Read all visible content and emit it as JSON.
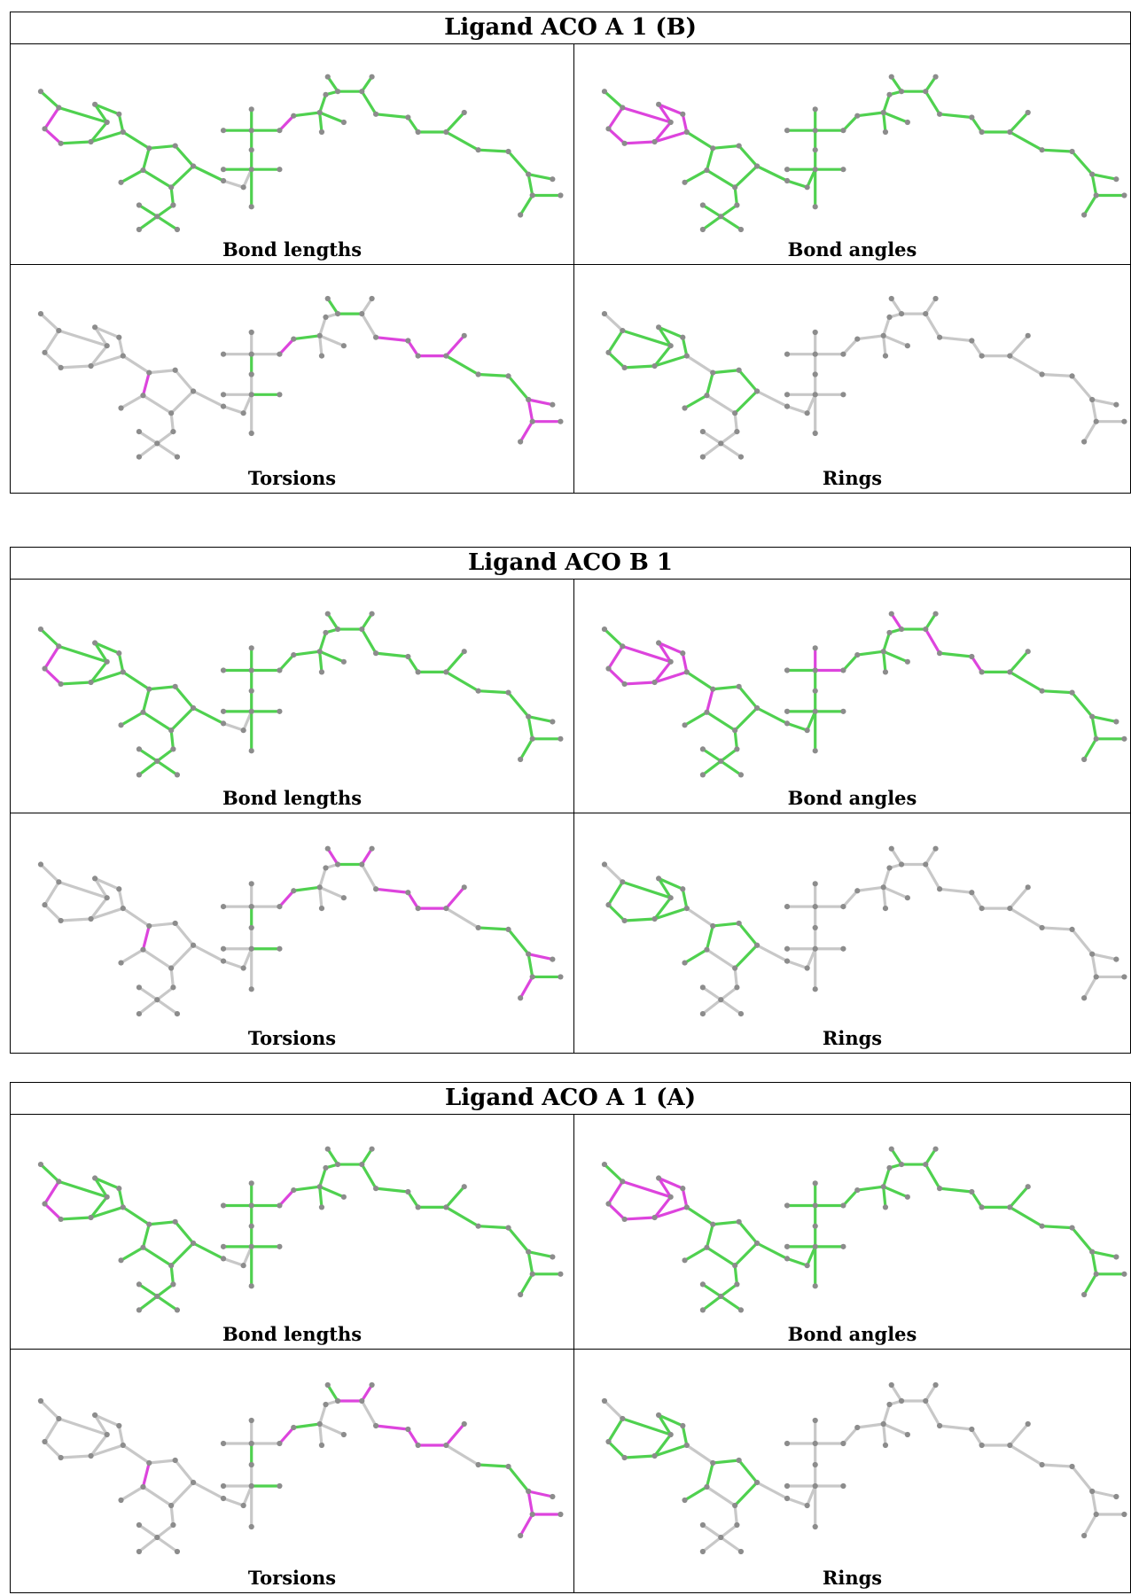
{
  "colors": {
    "ok": "#4fd14f",
    "outlier": "#dd44dd",
    "na": "#c8c8c8",
    "atom": "#8c8c8c"
  },
  "panels": [
    {
      "title": "Ligand ACO A 1 (B)",
      "cells": [
        {
          "caption": "Bond lengths",
          "magenta": [
            "b1",
            "b2",
            "b33"
          ],
          "gray": [
            "b23",
            "b24"
          ]
        },
        {
          "caption": "Bond angles",
          "magenta": [
            "b1",
            "b2",
            "b3",
            "b4",
            "b5",
            "b6",
            "b7",
            "b8",
            "b9"
          ],
          "gray": []
        },
        {
          "caption": "Torsions",
          "mode": "torsion",
          "green": [
            "b26",
            "b31",
            "b34",
            "b40",
            "b39",
            "b47",
            "b48",
            "b49"
          ],
          "magenta": [
            "b11",
            "b33",
            "b43",
            "b44",
            "b45",
            "b46",
            "b50",
            "b51",
            "b52",
            "b53"
          ]
        },
        {
          "caption": "Rings",
          "mode": "rings"
        }
      ]
    },
    {
      "title": "Ligand ACO B 1",
      "cells": [
        {
          "caption": "Bond lengths",
          "magenta": [
            "b1",
            "b2"
          ],
          "gray": [
            "b23",
            "b24"
          ]
        },
        {
          "caption": "Bond angles",
          "magenta": [
            "b1",
            "b2",
            "b3",
            "b4",
            "b5",
            "b6",
            "b7",
            "b8",
            "b9",
            "b11",
            "b27",
            "b29",
            "b39",
            "b42",
            "b44"
          ],
          "gray": []
        },
        {
          "caption": "Torsions",
          "mode": "torsion",
          "green": [
            "b26",
            "b31",
            "b34",
            "b40",
            "b48",
            "b49",
            "b51",
            "b52"
          ],
          "magenta": [
            "b11",
            "b33",
            "b39",
            "b41",
            "b43",
            "b44",
            "b45",
            "b46",
            "b50",
            "b53"
          ]
        },
        {
          "caption": "Rings",
          "mode": "rings"
        }
      ]
    },
    {
      "title": "Ligand ACO A 1 (A)",
      "cells": [
        {
          "caption": "Bond lengths",
          "magenta": [
            "b1",
            "b2",
            "b33"
          ],
          "gray": [
            "b23",
            "b24"
          ]
        },
        {
          "caption": "Bond angles",
          "magenta": [
            "b1",
            "b2",
            "b3",
            "b4",
            "b5",
            "b6",
            "b7",
            "b8",
            "b9"
          ],
          "gray": []
        },
        {
          "caption": "Torsions",
          "mode": "torsion",
          "green": [
            "b26",
            "b31",
            "b34",
            "b39",
            "b48",
            "b49"
          ],
          "magenta": [
            "b11",
            "b33",
            "b40",
            "b41",
            "b43",
            "b44",
            "b45",
            "b46",
            "b50",
            "b51",
            "b52",
            "b53"
          ]
        },
        {
          "caption": "Rings",
          "mode": "rings"
        }
      ]
    }
  ]
}
